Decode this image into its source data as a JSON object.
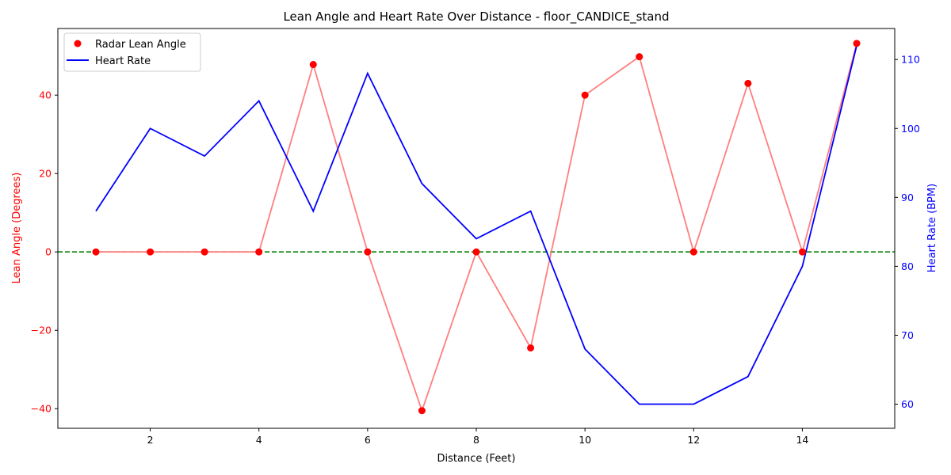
{
  "chart_data": {
    "type": "line",
    "title": "Lean Angle and Heart Rate Over Distance - floor_CANDICE_stand",
    "xlabel": "Distance (Feet)",
    "ylabel_left": "Lean Angle (Degrees)",
    "ylabel_right": "Heart Rate (BPM)",
    "x": [
      1,
      2,
      3,
      4,
      5,
      6,
      7,
      8,
      9,
      10,
      11,
      12,
      13,
      14,
      15
    ],
    "xlim": [
      0.3,
      15.7
    ],
    "ylim_left": [
      -45,
      57
    ],
    "ylim_right": [
      56.5,
      114.5
    ],
    "x_ticks": [
      "2",
      "4",
      "6",
      "8",
      "10",
      "12",
      "14"
    ],
    "left_ticks": [
      "−40",
      "−20",
      "0",
      "20",
      "40"
    ],
    "right_ticks": [
      "60",
      "70",
      "80",
      "90",
      "100",
      "110"
    ],
    "series": [
      {
        "name": "Radar Lean Angle",
        "axis": "left",
        "marker": "circle",
        "values": [
          0,
          0,
          0,
          0,
          47.8,
          0,
          -40.5,
          0,
          -24.5,
          40,
          49.8,
          0,
          43,
          0,
          53.2
        ]
      },
      {
        "name": "Heart Rate",
        "axis": "right",
        "marker": "line",
        "values": [
          88,
          100,
          96,
          104,
          88,
          108,
          92,
          84,
          88,
          68,
          60,
          60,
          64,
          80,
          112
        ]
      }
    ],
    "reference_line": {
      "axis": "left",
      "value": 0,
      "style": "dashed"
    },
    "legend_position": "upper-left",
    "grid": false,
    "colors": {
      "lean_marker": "#ff0000",
      "lean_line": "#ff7f7f",
      "heart_line": "#0000ff",
      "reference_line": "#008000",
      "left_axis_text": "#ff0000",
      "right_axis_text": "#0000ff"
    }
  }
}
